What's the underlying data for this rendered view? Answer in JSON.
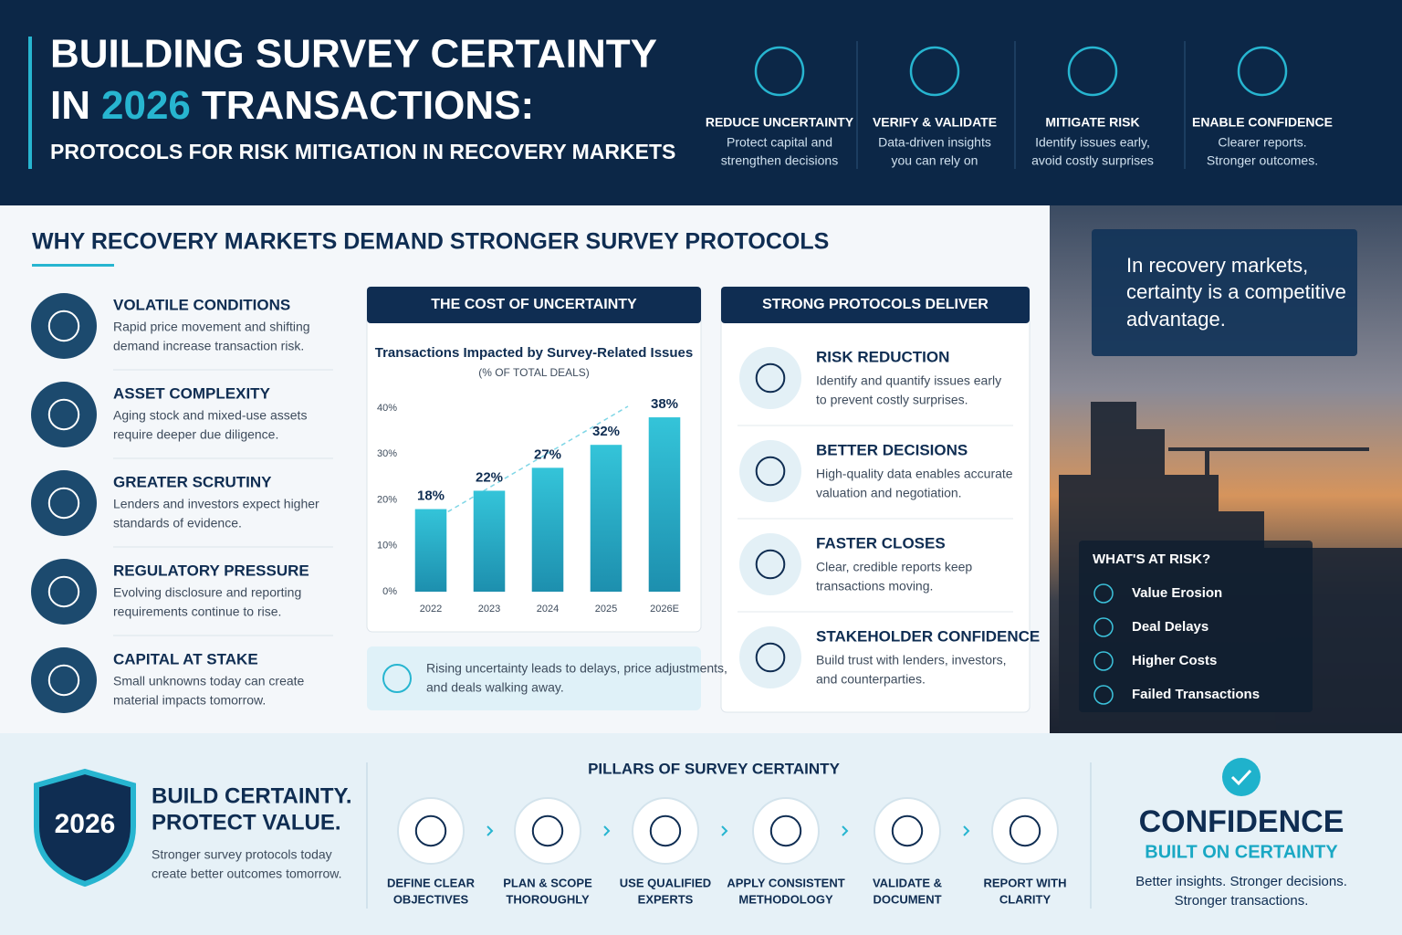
{
  "header": {
    "title_line1": "BUILDING SURVEY CERTAINTY",
    "title_in": "IN",
    "title_year": "2026",
    "title_rest": "TRANSACTIONS:",
    "subtitle": "PROTOCOLS FOR RISK MITIGATION IN RECOVERY MARKETS"
  },
  "benefits": [
    {
      "title": "REDUCE UNCERTAINTY",
      "line1": "Protect capital and",
      "line2": "strengthen decisions"
    },
    {
      "title": "VERIFY & VALIDATE",
      "line1": "Data-driven insights",
      "line2": "you can rely on"
    },
    {
      "title": "MITIGATE RISK",
      "line1": "Identify issues early,",
      "line2": "avoid costly surprises"
    },
    {
      "title": "ENABLE CONFIDENCE",
      "line1": "Clearer reports.",
      "line2": "Stronger outcomes."
    }
  ],
  "why": {
    "heading": "WHY RECOVERY MARKETS DEMAND STRONGER SURVEY PROTOCOLS",
    "items": [
      {
        "title": "VOLATILE CONDITIONS",
        "line1": "Rapid price movement and shifting",
        "line2": "demand increase transaction risk."
      },
      {
        "title": "ASSET COMPLEXITY",
        "line1": "Aging stock and mixed-use assets",
        "line2": "require deeper due diligence."
      },
      {
        "title": "GREATER SCRUTINY",
        "line1": "Lenders and investors expect higher",
        "line2": "standards of evidence."
      },
      {
        "title": "REGULATORY PRESSURE",
        "line1": "Evolving disclosure and reporting",
        "line2": "requirements continue to rise."
      },
      {
        "title": "CAPITAL AT STAKE",
        "line1": "Small unknowns today can create",
        "line2": "material impacts tomorrow."
      }
    ]
  },
  "cost": {
    "heading": "THE COST OF UNCERTAINTY",
    "note_line1": "Rising uncertainty leads to delays, price adjustments,",
    "note_line2": "and deals walking away."
  },
  "chart_data": {
    "type": "bar",
    "title": "Transactions Impacted by Survey-Related Issues",
    "subtitle": "(% OF TOTAL DEALS)",
    "categories": [
      "2022",
      "2023",
      "2024",
      "2025",
      "2026E"
    ],
    "values": [
      18,
      22,
      27,
      32,
      38
    ],
    "value_labels": [
      "18%",
      "22%",
      "27%",
      "32%",
      "38%"
    ],
    "color": "#2bb6cd",
    "ylim": [
      0,
      40
    ],
    "yticks": [
      {
        "value": 0,
        "label": "0%"
      },
      {
        "value": 10,
        "label": "10%"
      },
      {
        "value": 20,
        "label": "20%"
      },
      {
        "value": 30,
        "label": "30%"
      },
      {
        "value": 40,
        "label": "40%"
      }
    ],
    "grid": false
  },
  "protocols": {
    "heading": "STRONG PROTOCOLS DELIVER",
    "items": [
      {
        "title": "RISK REDUCTION",
        "line1": "Identify and quantify issues early",
        "line2": "to prevent costly surprises."
      },
      {
        "title": "BETTER DECISIONS",
        "line1": "High-quality data enables accurate",
        "line2": "valuation and negotiation."
      },
      {
        "title": "FASTER CLOSES",
        "line1": "Clear, credible reports keep",
        "line2": "transactions moving."
      },
      {
        "title": "STAKEHOLDER CONFIDENCE",
        "line1": "Build trust with lenders, investors,",
        "line2": "and counterparties."
      }
    ]
  },
  "quote": {
    "line1": "In recovery markets,",
    "line2": "certainty is a competitive",
    "line3": "advantage."
  },
  "risk": {
    "heading": "WHAT'S AT RISK?",
    "items": [
      "Value Erosion",
      "Deal Delays",
      "Higher Costs",
      "Failed Transactions"
    ]
  },
  "cta": {
    "badge": "2026",
    "line1": "BUILD CERTAINTY.",
    "line2": "PROTECT VALUE.",
    "text1": "Stronger survey protocols today",
    "text2": "create better outcomes tomorrow."
  },
  "pillars": {
    "heading": "PILLARS OF SURVEY CERTAINTY",
    "items": [
      {
        "line1": "DEFINE CLEAR",
        "line2": "OBJECTIVES"
      },
      {
        "line1": "PLAN & SCOPE",
        "line2": "THOROUGHLY"
      },
      {
        "line1": "USE QUALIFIED",
        "line2": "EXPERTS"
      },
      {
        "line1": "APPLY CONSISTENT",
        "line2": "METHODOLOGY"
      },
      {
        "line1": "VALIDATE &",
        "line2": "DOCUMENT"
      },
      {
        "line1": "REPORT WITH",
        "line2": "CLARITY"
      }
    ]
  },
  "confidence": {
    "title": "CONFIDENCE",
    "subtitle": "BUILT ON CERTAINTY",
    "line1": "Better insights. Stronger decisions.",
    "line2": "Stronger transactions."
  }
}
